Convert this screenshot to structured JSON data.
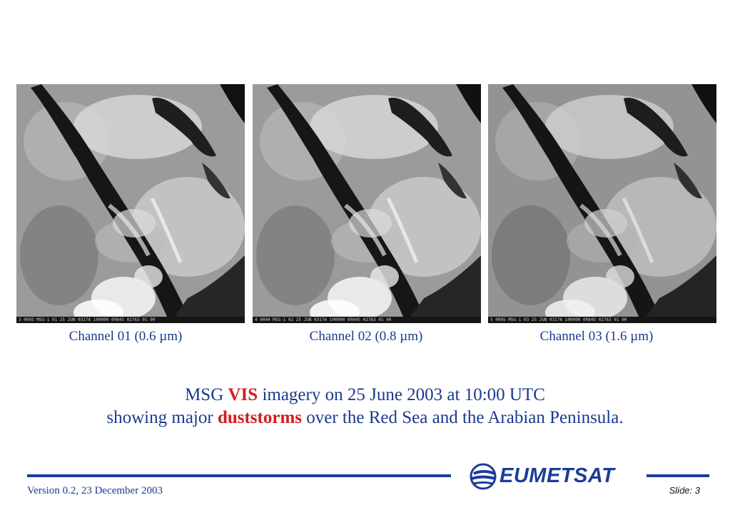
{
  "panels": [
    {
      "strip_text": "3 0003 MSG-1   01 25 JUN 03176 100000 00845 02763 01 00",
      "caption": "Channel 01 (0.6 µm)"
    },
    {
      "strip_text": "4 0004 MSG-1   02 25 JUN 03176 100000 00845 02763 01 00",
      "caption": "Channel 02 (0.8 µm)"
    },
    {
      "strip_text": "5 0005 MSG-1   03 25 JUN 03176 100000 00845 02763 01 00",
      "caption": "Channel 03 (1.6 µm)"
    }
  ],
  "headline": {
    "line1_a": "MSG ",
    "line1_accent": "VIS",
    "line1_b": " imagery on 25 June 2003 at 10:00 UTC",
    "line2_a": "showing major ",
    "line2_accent": "duststorms",
    "line2_b": " over the Red Sea and the Arabian Peninsula."
  },
  "footer": {
    "version": "Version 0.2, 23 December 2003",
    "logo": "EUMETSAT",
    "slide": "Slide: 3"
  },
  "colors": {
    "text_blue": "#1a3a8f",
    "accent_red": "#d41c1c",
    "rule_blue": "#1c3c9a"
  }
}
